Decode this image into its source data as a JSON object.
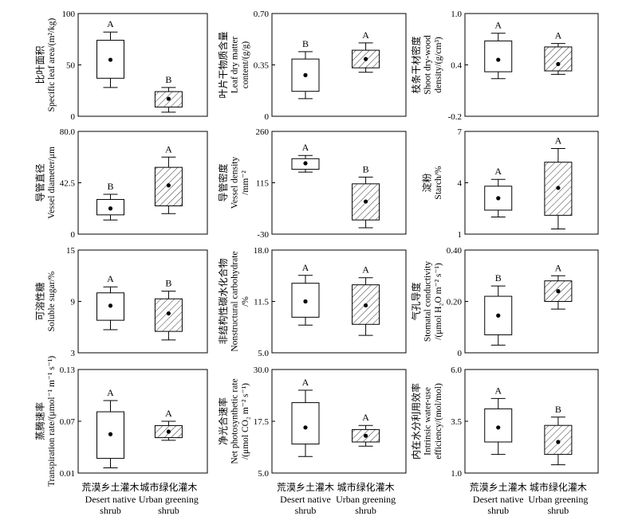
{
  "chart_data": [
    {
      "type": "box",
      "ylabel_cn": "比叶面积",
      "ylabel_en": [
        "Specific leaf area/(m²/kg)"
      ],
      "ylim": [
        0,
        100
      ],
      "ticks": [
        "0",
        "50",
        "100"
      ],
      "boxes": [
        {
          "whisker_low": 28,
          "q1": 37,
          "q3": 74,
          "whisker_high": 82,
          "mean": 55,
          "sig": "A",
          "hatched": false
        },
        {
          "whisker_low": 4,
          "q1": 9,
          "q3": 24,
          "whisker_high": 28,
          "mean": 17,
          "sig": "B",
          "hatched": true
        }
      ]
    },
    {
      "type": "box",
      "ylabel_cn": "叶片干物质含量",
      "ylabel_en": [
        "Leaf dry matter",
        "content/(g/g)"
      ],
      "ylim": [
        0,
        0.7
      ],
      "ticks": [
        "0",
        "0.35",
        "0.70"
      ],
      "boxes": [
        {
          "whisker_low": 0.12,
          "q1": 0.17,
          "q3": 0.39,
          "whisker_high": 0.44,
          "mean": 0.28,
          "sig": "B",
          "hatched": false
        },
        {
          "whisker_low": 0.3,
          "q1": 0.33,
          "q3": 0.45,
          "whisker_high": 0.5,
          "mean": 0.39,
          "sig": "A",
          "hatched": true
        }
      ]
    },
    {
      "type": "box",
      "ylabel_cn": "枝条干材密度",
      "ylabel_en": [
        "Shoot dry-wood",
        "density/(g/cm³)"
      ],
      "ylim": [
        -0.2,
        1.0
      ],
      "ticks": [
        "-0.2",
        "0.4",
        "1.0"
      ],
      "boxes": [
        {
          "whisker_low": 0.24,
          "q1": 0.32,
          "q3": 0.68,
          "whisker_high": 0.77,
          "mean": 0.46,
          "sig": "A",
          "hatched": false
        },
        {
          "whisker_low": 0.29,
          "q1": 0.33,
          "q3": 0.61,
          "whisker_high": 0.65,
          "mean": 0.41,
          "sig": "A",
          "hatched": true
        }
      ]
    },
    {
      "type": "box",
      "ylabel_cn": "导管直径",
      "ylabel_en": [
        "Vessel diameter/μm"
      ],
      "ylim": [
        0,
        80
      ],
      "ticks": [
        "0",
        "42.5",
        "80.0"
      ],
      "boxes": [
        {
          "whisker_low": 11,
          "q1": 15,
          "q3": 27,
          "whisker_high": 31,
          "mean": 20,
          "sig": "B",
          "hatched": false
        },
        {
          "whisker_low": 16,
          "q1": 22,
          "q3": 52,
          "whisker_high": 60,
          "mean": 38,
          "sig": "A",
          "hatched": true
        }
      ]
    },
    {
      "type": "box",
      "ylabel_cn": "导管密度",
      "ylabel_en": [
        "Vessel density",
        "/mm⁻²"
      ],
      "ylim": [
        -30,
        260
      ],
      "ticks": [
        "-30",
        "115",
        "260"
      ],
      "boxes": [
        {
          "whisker_low": 145,
          "q1": 153,
          "q3": 183,
          "whisker_high": 192,
          "mean": 170,
          "sig": "A",
          "hatched": false
        },
        {
          "whisker_low": -12,
          "q1": 10,
          "q3": 112,
          "whisker_high": 131,
          "mean": 62,
          "sig": "B",
          "hatched": true
        }
      ]
    },
    {
      "type": "box",
      "ylabel_cn": "淀粉",
      "ylabel_en": [
        "Starch/%"
      ],
      "ylim": [
        1,
        7
      ],
      "ticks": [
        "1",
        "4",
        "7"
      ],
      "boxes": [
        {
          "whisker_low": 2.0,
          "q1": 2.4,
          "q3": 3.8,
          "whisker_high": 4.2,
          "mean": 3.1,
          "sig": "A",
          "hatched": false
        },
        {
          "whisker_low": 1.3,
          "q1": 2.1,
          "q3": 5.2,
          "whisker_high": 6.0,
          "mean": 3.7,
          "sig": "A",
          "hatched": true
        }
      ]
    },
    {
      "type": "box",
      "ylabel_cn": "可溶性糖",
      "ylabel_en": [
        "Soluble sugar/%"
      ],
      "ylim": [
        3,
        15
      ],
      "ticks": [
        "3",
        "9",
        "15"
      ],
      "boxes": [
        {
          "whisker_low": 5.7,
          "q1": 6.8,
          "q3": 10.0,
          "whisker_high": 10.7,
          "mean": 8.5,
          "sig": "A",
          "hatched": false
        },
        {
          "whisker_low": 4.5,
          "q1": 5.5,
          "q3": 9.3,
          "whisker_high": 10.2,
          "mean": 7.6,
          "sig": "B",
          "hatched": true
        }
      ]
    },
    {
      "type": "box",
      "ylabel_cn": "非结构性碳水化合物",
      "ylabel_en": [
        "Nonstructural carbohydrate",
        "/%"
      ],
      "ylim": [
        5,
        18
      ],
      "ticks": [
        "5.0",
        "11.5",
        "18.0"
      ],
      "boxes": [
        {
          "whisker_low": 8.5,
          "q1": 9.5,
          "q3": 13.8,
          "whisker_high": 14.8,
          "mean": 11.5,
          "sig": "A",
          "hatched": false
        },
        {
          "whisker_low": 7.2,
          "q1": 8.6,
          "q3": 13.6,
          "whisker_high": 14.5,
          "mean": 11.0,
          "sig": "A",
          "hatched": true
        }
      ]
    },
    {
      "type": "box",
      "ylabel_cn": "气孔导度",
      "ylabel_en": [
        "Stomatal conductivity",
        "/(μmol H₂O m⁻² s⁻¹)"
      ],
      "ylim": [
        0,
        0.4
      ],
      "ticks": [
        "0",
        "0.20",
        "0.40"
      ],
      "boxes": [
        {
          "whisker_low": 0.03,
          "q1": 0.07,
          "q3": 0.22,
          "whisker_high": 0.26,
          "mean": 0.145,
          "sig": "B",
          "hatched": false
        },
        {
          "whisker_low": 0.17,
          "q1": 0.2,
          "q3": 0.28,
          "whisker_high": 0.3,
          "mean": 0.24,
          "sig": "A",
          "hatched": true
        }
      ]
    },
    {
      "type": "box",
      "ylabel_cn": "蒸腾速率",
      "ylabel_en": [
        "Transpiration rate/(μmol⁻¹ m⁻¹ s⁻¹)"
      ],
      "ylim": [
        0.01,
        0.13
      ],
      "ticks": [
        "0.01",
        "0.07",
        "0.13"
      ],
      "boxes": [
        {
          "whisker_low": 0.016,
          "q1": 0.027,
          "q3": 0.081,
          "whisker_high": 0.094,
          "mean": 0.055,
          "sig": "A",
          "hatched": false
        },
        {
          "whisker_low": 0.048,
          "q1": 0.051,
          "q3": 0.065,
          "whisker_high": 0.07,
          "mean": 0.058,
          "sig": "A",
          "hatched": true
        }
      ]
    },
    {
      "type": "box",
      "ylabel_cn": "净光合速率",
      "ylabel_en": [
        "Net photosynthetic rate",
        "/(μmol CO₂ m⁻² s⁻¹)"
      ],
      "ylim": [
        5,
        30
      ],
      "ticks": [
        "5.0",
        "17.5",
        "30.0"
      ],
      "boxes": [
        {
          "whisker_low": 9.0,
          "q1": 12.0,
          "q3": 22.0,
          "whisker_high": 25.0,
          "mean": 16.0,
          "sig": "A",
          "hatched": false
        },
        {
          "whisker_low": 11.5,
          "q1": 12.5,
          "q3": 15.5,
          "whisker_high": 16.5,
          "mean": 14.0,
          "sig": "A",
          "hatched": true
        }
      ]
    },
    {
      "type": "box",
      "ylabel_cn": "内在水分利用效率",
      "ylabel_en": [
        "Intrinsic water-use",
        "efficiency/(mol/mol)"
      ],
      "ylim": [
        1,
        6
      ],
      "ticks": [
        "1.0",
        "3.5",
        "6.0"
      ],
      "boxes": [
        {
          "whisker_low": 1.9,
          "q1": 2.5,
          "q3": 4.1,
          "whisker_high": 4.6,
          "mean": 3.2,
          "sig": "A",
          "hatched": false
        },
        {
          "whisker_low": 1.4,
          "q1": 1.9,
          "q3": 3.3,
          "whisker_high": 3.7,
          "mean": 2.5,
          "sig": "B",
          "hatched": true
        }
      ]
    }
  ],
  "x_categories": [
    {
      "cn": "荒漠乡土灌木",
      "en": [
        "Desert native",
        "shrub"
      ]
    },
    {
      "cn": "城市绿化灌木",
      "en": [
        "Urban greening",
        "shrub"
      ]
    }
  ]
}
